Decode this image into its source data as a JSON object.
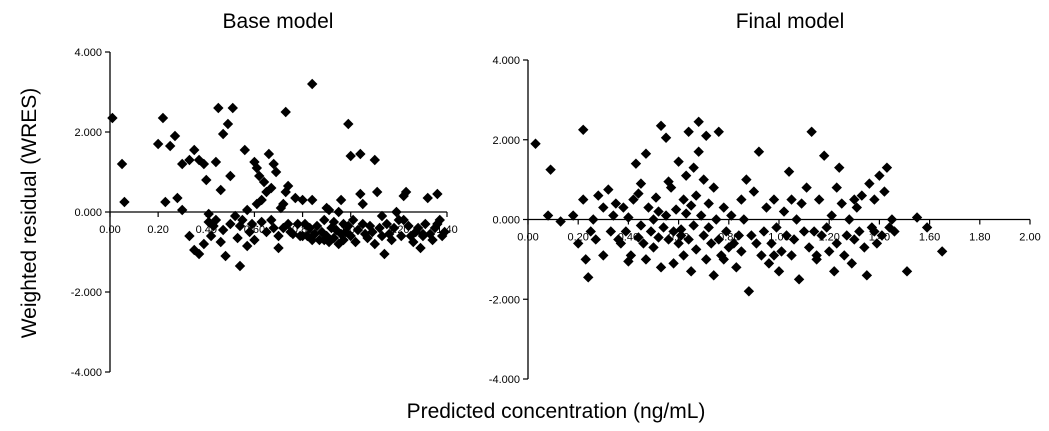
{
  "ylabel": "Weighted residual (WRES)",
  "xlabel": "Predicted concentration (ng/mL)",
  "chart_data": [
    {
      "type": "scatter",
      "title": "Base model",
      "xlabel": "",
      "ylabel": "",
      "ylim": [
        -4,
        4
      ],
      "xlim": [
        0,
        1.4
      ],
      "yticks": [
        "4.000",
        "2.000",
        "0.000",
        "-2.000",
        "-4.000"
      ],
      "xticks": [
        "0.00",
        "0.20",
        "0.40",
        "0.60",
        "0.80",
        "1.00",
        "1.20",
        "1.40"
      ],
      "grid": false,
      "marker": "diamond",
      "color": "#000000",
      "points": [
        [
          0.01,
          2.35
        ],
        [
          0.05,
          1.2
        ],
        [
          0.06,
          0.25
        ],
        [
          0.2,
          1.7
        ],
        [
          0.22,
          2.35
        ],
        [
          0.23,
          0.25
        ],
        [
          0.25,
          1.65
        ],
        [
          0.27,
          1.9
        ],
        [
          0.28,
          0.35
        ],
        [
          0.3,
          0.05
        ],
        [
          0.3,
          1.2
        ],
        [
          0.33,
          1.3
        ],
        [
          0.33,
          -0.6
        ],
        [
          0.35,
          1.55
        ],
        [
          0.35,
          -0.95
        ],
        [
          0.37,
          -1.05
        ],
        [
          0.37,
          1.3
        ],
        [
          0.39,
          -0.8
        ],
        [
          0.39,
          1.2
        ],
        [
          0.4,
          0.8
        ],
        [
          0.41,
          -0.05
        ],
        [
          0.41,
          -0.25
        ],
        [
          0.42,
          -0.6
        ],
        [
          0.43,
          -0.35
        ],
        [
          0.44,
          -0.2
        ],
        [
          0.44,
          1.25
        ],
        [
          0.45,
          2.6
        ],
        [
          0.46,
          0.55
        ],
        [
          0.47,
          -0.45
        ],
        [
          0.47,
          1.95
        ],
        [
          0.48,
          -1.1
        ],
        [
          0.49,
          2.2
        ],
        [
          0.5,
          -0.3
        ],
        [
          0.5,
          0.9
        ],
        [
          0.51,
          2.6
        ],
        [
          0.52,
          -0.1
        ],
        [
          0.53,
          -0.65
        ],
        [
          0.54,
          -0.35
        ],
        [
          0.54,
          -1.35
        ],
        [
          0.55,
          -0.2
        ],
        [
          0.56,
          1.55
        ],
        [
          0.57,
          0.05
        ],
        [
          0.58,
          -0.5
        ],
        [
          0.59,
          -0.3
        ],
        [
          0.6,
          1.25
        ],
        [
          0.6,
          -0.7
        ],
        [
          0.61,
          0.2
        ],
        [
          0.61,
          1.1
        ],
        [
          0.62,
          0.9
        ],
        [
          0.63,
          -0.25
        ],
        [
          0.63,
          0.3
        ],
        [
          0.64,
          0.75
        ],
        [
          0.65,
          0.5
        ],
        [
          0.65,
          -0.5
        ],
        [
          0.66,
          1.45
        ],
        [
          0.67,
          -0.2
        ],
        [
          0.67,
          0.6
        ],
        [
          0.68,
          -0.4
        ],
        [
          0.69,
          1.0
        ],
        [
          0.7,
          -0.6
        ],
        [
          0.7,
          -0.9
        ],
        [
          0.71,
          0.1
        ],
        [
          0.72,
          -0.4
        ],
        [
          0.73,
          2.5
        ],
        [
          0.73,
          0.5
        ],
        [
          0.74,
          -0.3
        ],
        [
          0.75,
          -0.5
        ],
        [
          0.76,
          -0.55
        ],
        [
          0.77,
          0.35
        ],
        [
          0.78,
          -0.3
        ],
        [
          0.79,
          -0.6
        ],
        [
          0.8,
          0.3
        ],
        [
          0.81,
          -0.3
        ],
        [
          0.82,
          -0.6
        ],
        [
          0.83,
          -0.4
        ],
        [
          0.84,
          -0.7
        ],
        [
          0.84,
          3.2
        ],
        [
          0.85,
          -0.55
        ],
        [
          0.86,
          -0.35
        ],
        [
          0.87,
          -0.7
        ],
        [
          0.88,
          -0.5
        ],
        [
          0.89,
          -0.2
        ],
        [
          0.9,
          -0.6
        ],
        [
          0.9,
          0.1
        ],
        [
          0.91,
          -0.75
        ],
        [
          0.92,
          -0.4
        ],
        [
          0.93,
          -0.65
        ],
        [
          0.93,
          -0.25
        ],
        [
          0.94,
          -0.45
        ],
        [
          0.95,
          -0.8
        ],
        [
          0.95,
          0.0
        ],
        [
          0.96,
          -0.55
        ],
        [
          0.97,
          -0.3
        ],
        [
          0.97,
          -0.7
        ],
        [
          0.98,
          -0.5
        ],
        [
          0.99,
          -0.35
        ],
        [
          0.99,
          2.2
        ],
        [
          1.0,
          1.4
        ],
        [
          1.0,
          -0.6
        ],
        [
          1.01,
          -0.2
        ],
        [
          1.02,
          -0.75
        ],
        [
          1.03,
          -0.45
        ],
        [
          1.04,
          1.45
        ],
        [
          1.04,
          0.45
        ],
        [
          1.05,
          -0.3
        ],
        [
          1.06,
          -0.55
        ],
        [
          1.07,
          -0.65
        ],
        [
          1.08,
          -0.35
        ],
        [
          1.09,
          -0.5
        ],
        [
          1.1,
          -0.8
        ],
        [
          1.1,
          1.3
        ],
        [
          1.11,
          0.5
        ],
        [
          1.12,
          -0.4
        ],
        [
          1.13,
          -0.6
        ],
        [
          1.14,
          -1.05
        ],
        [
          1.15,
          -0.3
        ],
        [
          1.16,
          -0.55
        ],
        [
          1.17,
          -0.7
        ],
        [
          1.18,
          -0.4
        ],
        [
          1.19,
          0.0
        ],
        [
          1.2,
          -0.2
        ],
        [
          1.21,
          -0.6
        ],
        [
          1.22,
          0.4
        ],
        [
          1.23,
          0.5
        ],
        [
          1.24,
          -0.35
        ],
        [
          1.25,
          -0.6
        ],
        [
          1.26,
          -0.75
        ],
        [
          1.27,
          -0.5
        ],
        [
          1.28,
          -0.4
        ],
        [
          1.29,
          -0.9
        ],
        [
          1.3,
          -0.6
        ],
        [
          1.31,
          -0.3
        ],
        [
          1.32,
          0.35
        ],
        [
          1.33,
          -0.55
        ],
        [
          1.34,
          -0.7
        ],
        [
          1.35,
          -0.4
        ],
        [
          1.36,
          0.45
        ],
        [
          1.37,
          -0.2
        ],
        [
          1.38,
          -0.6
        ],
        [
          1.39,
          -0.5
        ],
        [
          0.89,
          -0.7
        ],
        [
          0.8,
          -0.6
        ],
        [
          0.74,
          0.65
        ],
        [
          0.68,
          1.2
        ],
        [
          0.57,
          -0.85
        ],
        [
          0.46,
          -0.75
        ],
        [
          0.72,
          0.2
        ],
        [
          0.84,
          0.3
        ],
        [
          0.91,
          0.05
        ],
        [
          0.96,
          0.3
        ],
        [
          1.05,
          0.2
        ],
        [
          1.13,
          -0.1
        ],
        [
          1.22,
          -0.2
        ],
        [
          1.3,
          -0.55
        ],
        [
          1.36,
          -0.3
        ]
      ]
    },
    {
      "type": "scatter",
      "title": "Final model",
      "xlabel": "",
      "ylabel": "",
      "ylim": [
        -4,
        4
      ],
      "xlim": [
        0,
        2.0
      ],
      "yticks": [
        "4.000",
        "2.000",
        "0.000",
        "-2.000",
        "-4.000"
      ],
      "xticks": [
        "0.00",
        "0.20",
        "0.40",
        "0.60",
        "0.80",
        "1.00",
        "1.20",
        "1.40",
        "1.60",
        "1.80",
        "2.00"
      ],
      "grid": false,
      "marker": "diamond",
      "color": "#000000",
      "points": [
        [
          0.03,
          1.9
        ],
        [
          0.08,
          0.1
        ],
        [
          0.09,
          1.25
        ],
        [
          0.13,
          -0.05
        ],
        [
          0.18,
          0.1
        ],
        [
          0.2,
          -0.6
        ],
        [
          0.22,
          2.25
        ],
        [
          0.22,
          0.5
        ],
        [
          0.23,
          -1.0
        ],
        [
          0.24,
          -1.45
        ],
        [
          0.25,
          -0.3
        ],
        [
          0.26,
          0.0
        ],
        [
          0.27,
          -0.5
        ],
        [
          0.28,
          0.6
        ],
        [
          0.3,
          -0.9
        ],
        [
          0.3,
          0.3
        ],
        [
          0.32,
          0.75
        ],
        [
          0.33,
          -0.3
        ],
        [
          0.34,
          0.1
        ],
        [
          0.35,
          0.4
        ],
        [
          0.36,
          -0.5
        ],
        [
          0.37,
          -0.6
        ],
        [
          0.38,
          0.3
        ],
        [
          0.39,
          -0.3
        ],
        [
          0.4,
          0.05
        ],
        [
          0.4,
          -1.05
        ],
        [
          0.41,
          -0.9
        ],
        [
          0.42,
          0.5
        ],
        [
          0.43,
          1.4
        ],
        [
          0.44,
          -0.45
        ],
        [
          0.44,
          0.65
        ],
        [
          0.45,
          -0.15
        ],
        [
          0.46,
          -0.6
        ],
        [
          0.47,
          -1.0
        ],
        [
          0.47,
          1.65
        ],
        [
          0.48,
          0.3
        ],
        [
          0.49,
          -0.3
        ],
        [
          0.5,
          0.0
        ],
        [
          0.5,
          -0.7
        ],
        [
          0.51,
          0.55
        ],
        [
          0.52,
          -0.45
        ],
        [
          0.53,
          -1.2
        ],
        [
          0.53,
          2.35
        ],
        [
          0.54,
          -0.2
        ],
        [
          0.55,
          0.1
        ],
        [
          0.55,
          2.05
        ],
        [
          0.56,
          -0.5
        ],
        [
          0.57,
          0.8
        ],
        [
          0.58,
          -0.3
        ],
        [
          0.58,
          -1.1
        ],
        [
          0.59,
          0.25
        ],
        [
          0.6,
          -0.6
        ],
        [
          0.6,
          1.45
        ],
        [
          0.61,
          -0.25
        ],
        [
          0.62,
          0.5
        ],
        [
          0.62,
          -0.9
        ],
        [
          0.63,
          0.15
        ],
        [
          0.64,
          -0.5
        ],
        [
          0.64,
          2.2
        ],
        [
          0.65,
          0.35
        ],
        [
          0.65,
          -1.3
        ],
        [
          0.66,
          -0.15
        ],
        [
          0.67,
          0.6
        ],
        [
          0.67,
          -0.75
        ],
        [
          0.68,
          2.45
        ],
        [
          0.68,
          1.7
        ],
        [
          0.69,
          0.1
        ],
        [
          0.7,
          -0.4
        ],
        [
          0.7,
          1.0
        ],
        [
          0.71,
          -1.0
        ],
        [
          0.72,
          -0.2
        ],
        [
          0.72,
          0.4
        ],
        [
          0.73,
          -0.6
        ],
        [
          0.74,
          0.8
        ],
        [
          0.74,
          -1.4
        ],
        [
          0.75,
          0.0
        ],
        [
          0.76,
          -0.5
        ],
        [
          0.76,
          2.2
        ],
        [
          0.77,
          -0.9
        ],
        [
          0.78,
          0.3
        ],
        [
          0.79,
          -0.3
        ],
        [
          0.8,
          -0.7
        ],
        [
          0.81,
          0.1
        ],
        [
          0.82,
          -0.6
        ],
        [
          0.83,
          -1.2
        ],
        [
          0.84,
          -0.4
        ],
        [
          0.85,
          -0.8
        ],
        [
          0.86,
          0.0
        ],
        [
          0.87,
          1.0
        ],
        [
          0.88,
          -1.8
        ],
        [
          0.89,
          -0.4
        ],
        [
          0.9,
          0.7
        ],
        [
          0.91,
          -0.6
        ],
        [
          0.92,
          1.7
        ],
        [
          0.93,
          -0.9
        ],
        [
          0.94,
          -0.3
        ],
        [
          0.95,
          0.3
        ],
        [
          0.96,
          -1.1
        ],
        [
          0.97,
          -0.6
        ],
        [
          0.98,
          0.5
        ],
        [
          0.99,
          -0.2
        ],
        [
          1.0,
          -1.3
        ],
        [
          1.01,
          -0.8
        ],
        [
          1.02,
          0.2
        ],
        [
          1.03,
          -0.4
        ],
        [
          1.04,
          1.2
        ],
        [
          1.05,
          -0.9
        ],
        [
          1.06,
          -0.5
        ],
        [
          1.07,
          0.0
        ],
        [
          1.08,
          -1.5
        ],
        [
          1.09,
          0.4
        ],
        [
          1.1,
          -0.3
        ],
        [
          1.11,
          0.8
        ],
        [
          1.12,
          -0.7
        ],
        [
          1.13,
          2.2
        ],
        [
          1.14,
          -0.3
        ],
        [
          1.15,
          -1.0
        ],
        [
          1.16,
          0.5
        ],
        [
          1.17,
          -0.4
        ],
        [
          1.18,
          1.6
        ],
        [
          1.19,
          -0.2
        ],
        [
          1.2,
          -0.8
        ],
        [
          1.21,
          0.1
        ],
        [
          1.22,
          -1.3
        ],
        [
          1.23,
          -0.6
        ],
        [
          1.24,
          1.3
        ],
        [
          1.25,
          0.4
        ],
        [
          1.26,
          -0.9
        ],
        [
          1.27,
          -0.4
        ],
        [
          1.28,
          0.0
        ],
        [
          1.29,
          -1.1
        ],
        [
          1.3,
          -0.5
        ],
        [
          1.31,
          0.3
        ],
        [
          1.32,
          -0.3
        ],
        [
          1.33,
          0.6
        ],
        [
          1.34,
          -0.7
        ],
        [
          1.35,
          -1.4
        ],
        [
          1.36,
          0.9
        ],
        [
          1.37,
          -0.2
        ],
        [
          1.38,
          0.5
        ],
        [
          1.39,
          -0.6
        ],
        [
          1.4,
          1.1
        ],
        [
          1.41,
          -0.4
        ],
        [
          1.42,
          0.7
        ],
        [
          1.43,
          1.3
        ],
        [
          1.44,
          -0.2
        ],
        [
          1.45,
          0.0
        ],
        [
          1.46,
          -0.3
        ],
        [
          1.51,
          -1.3
        ],
        [
          1.59,
          -0.2
        ],
        [
          1.65,
          -0.8
        ],
        [
          1.55,
          0.05
        ],
        [
          0.56,
          0.95
        ],
        [
          0.45,
          0.9
        ],
        [
          0.63,
          1.1
        ],
        [
          0.66,
          1.3
        ],
        [
          0.71,
          2.1
        ],
        [
          0.52,
          0.2
        ],
        [
          0.61,
          -0.4
        ],
        [
          0.78,
          -1.0
        ],
        [
          0.85,
          0.5
        ],
        [
          0.98,
          -0.9
        ],
        [
          1.05,
          0.5
        ],
        [
          1.15,
          -0.9
        ],
        [
          1.23,
          0.8
        ],
        [
          1.3,
          0.5
        ],
        [
          1.38,
          -0.3
        ]
      ]
    }
  ]
}
